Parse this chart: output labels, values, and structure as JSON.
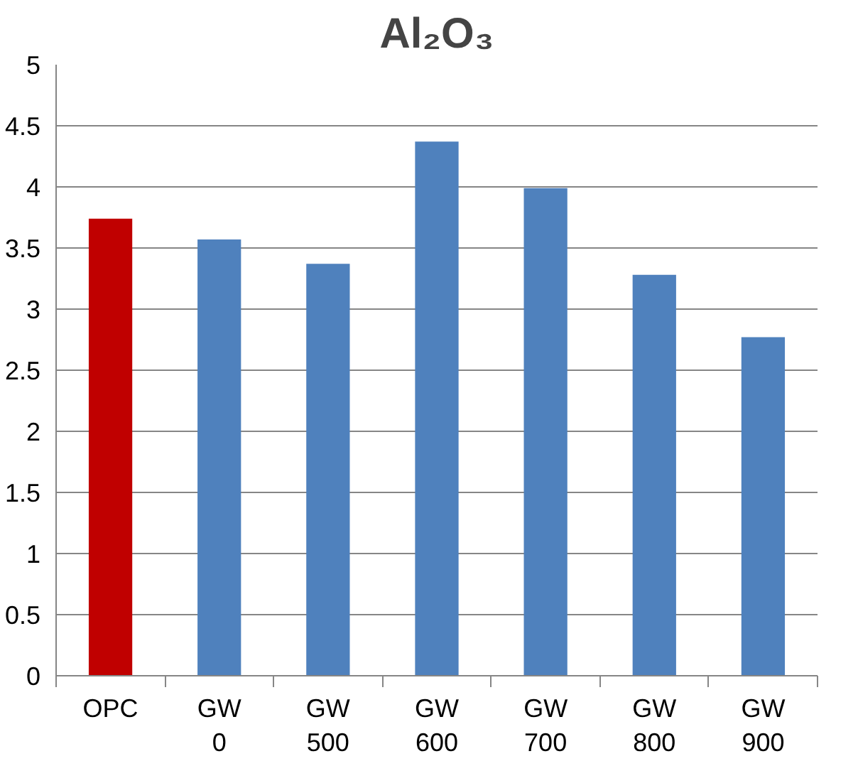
{
  "chart_data": {
    "type": "bar",
    "title": "Al₂O₃",
    "categories": [
      "OPC",
      "GW\n0",
      "GW\n500",
      "GW\n600",
      "GW\n700",
      "GW\n800",
      "GW\n900"
    ],
    "values": [
      3.74,
      3.57,
      3.37,
      4.37,
      3.99,
      3.28,
      2.77
    ],
    "colors": [
      "#c00000",
      "#4f81bd",
      "#4f81bd",
      "#4f81bd",
      "#4f81bd",
      "#4f81bd",
      "#4f81bd"
    ],
    "ylim": [
      0,
      5
    ],
    "yticks": [
      0,
      0.5,
      1,
      1.5,
      2,
      2.5,
      3,
      3.5,
      4,
      4.5,
      5
    ],
    "grid": "y"
  }
}
